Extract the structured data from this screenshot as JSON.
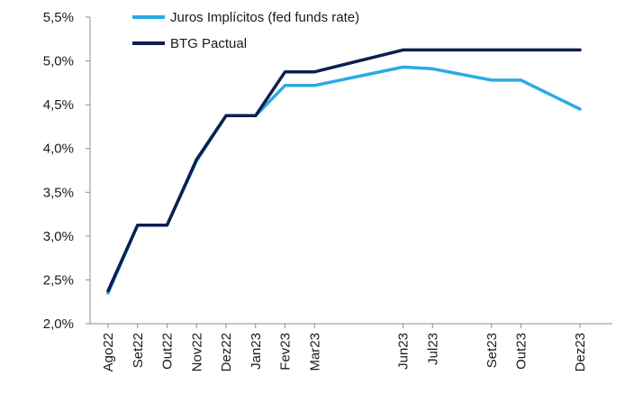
{
  "chart_data": {
    "type": "line",
    "title": "",
    "xlabel": "",
    "ylabel": "",
    "x": [
      "2022-08",
      "2022-09",
      "2022-10",
      "2022-11",
      "2022-12",
      "2023-01",
      "2023-02",
      "2023-03",
      "2023-06",
      "2023-07",
      "2023-09",
      "2023-10",
      "2023-12"
    ],
    "categories": [
      "Ago22",
      "Set22",
      "Out22",
      "Nov22",
      "Dez22",
      "Jan23",
      "Fev23",
      "Mar23",
      "Jun23",
      "Jul23",
      "Set23",
      "Out23",
      "Dez23"
    ],
    "ylim": [
      2.0,
      5.5
    ],
    "yticks": [
      2.0,
      2.5,
      3.0,
      3.5,
      4.0,
      4.5,
      5.0,
      5.5
    ],
    "ytick_labels": [
      "2,0%",
      "2,5%",
      "3,0%",
      "3,5%",
      "4,0%",
      "4,5%",
      "5,0%",
      "5,5%"
    ],
    "grid": false,
    "legend_position": "top-center",
    "series": [
      {
        "name": "Juros Implícitos (fed funds rate)",
        "color": "#29abe2",
        "values": [
          2.35,
          3.125,
          3.125,
          3.86,
          4.375,
          4.375,
          4.72,
          4.72,
          4.93,
          4.91,
          4.78,
          4.78,
          4.45
        ]
      },
      {
        "name": "BTG Pactual",
        "color": "#0d1f4f",
        "values": [
          2.375,
          3.125,
          3.125,
          3.875,
          4.375,
          4.375,
          4.875,
          4.875,
          5.125,
          5.125,
          5.125,
          5.125,
          5.125
        ]
      }
    ]
  }
}
